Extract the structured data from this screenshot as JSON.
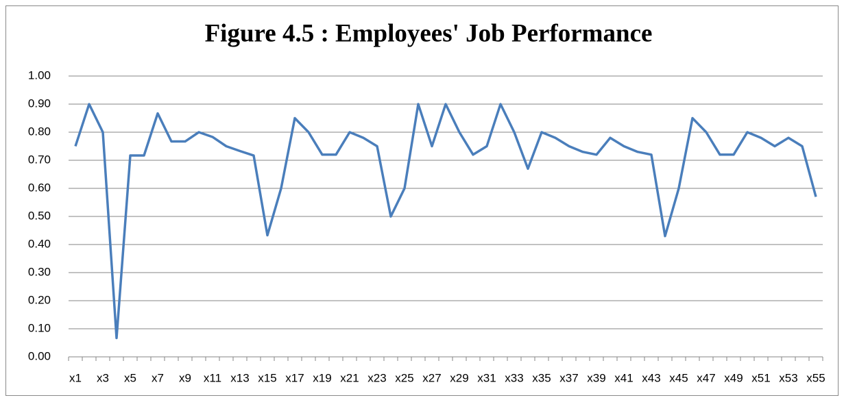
{
  "chart_data": {
    "type": "line",
    "title": "Figure 4.5 : Employees' Job Performance",
    "categories": [
      "x1",
      null,
      "x3",
      null,
      "x5",
      null,
      "x7",
      null,
      "x9",
      null,
      "x11",
      null,
      "x13",
      null,
      "x15",
      null,
      "x17",
      null,
      "x19",
      null,
      "x21",
      null,
      "x23",
      null,
      "x25",
      null,
      "x27",
      null,
      "x29",
      null,
      "x31",
      null,
      "x33",
      null,
      "x35",
      null,
      "x37",
      null,
      "x39",
      null,
      "x41",
      null,
      "x43",
      null,
      "x45",
      null,
      "x47",
      null,
      "x49",
      null,
      "x51",
      null,
      "x53",
      null,
      "x55"
    ],
    "values": [
      0.75,
      0.9,
      0.8,
      0.067,
      0.717,
      0.717,
      0.867,
      0.767,
      0.767,
      0.8,
      0.783,
      0.75,
      0.733,
      0.717,
      0.433,
      0.6,
      0.85,
      0.8,
      0.72,
      0.72,
      0.8,
      0.78,
      0.75,
      0.5,
      0.6,
      0.9,
      0.75,
      0.9,
      0.8,
      0.72,
      0.75,
      0.9,
      0.8,
      0.67,
      0.8,
      0.78,
      0.75,
      0.73,
      0.72,
      0.78,
      0.75,
      0.73,
      0.72,
      0.43,
      0.6,
      0.85,
      0.8,
      0.72,
      0.72,
      0.8,
      0.78,
      0.75,
      0.78,
      0.75,
      0.57
    ],
    "color": "#4a7ebb",
    "ylim": [
      0,
      1
    ],
    "yticks": [
      {
        "value": 0,
        "label": "0.00"
      },
      {
        "value": 0.1,
        "label": "0.10"
      },
      {
        "value": 0.2,
        "label": "0.20"
      },
      {
        "value": 0.3,
        "label": "0.30"
      },
      {
        "value": 0.4,
        "label": "0.40"
      },
      {
        "value": 0.5,
        "label": "0.50"
      },
      {
        "value": 0.6,
        "label": "0.60"
      },
      {
        "value": 0.7,
        "label": "0.70"
      },
      {
        "value": 0.8,
        "label": "0.80"
      },
      {
        "value": 0.9,
        "label": "0.90"
      },
      {
        "value": 1,
        "label": "1.00"
      }
    ],
    "grid": true
  }
}
